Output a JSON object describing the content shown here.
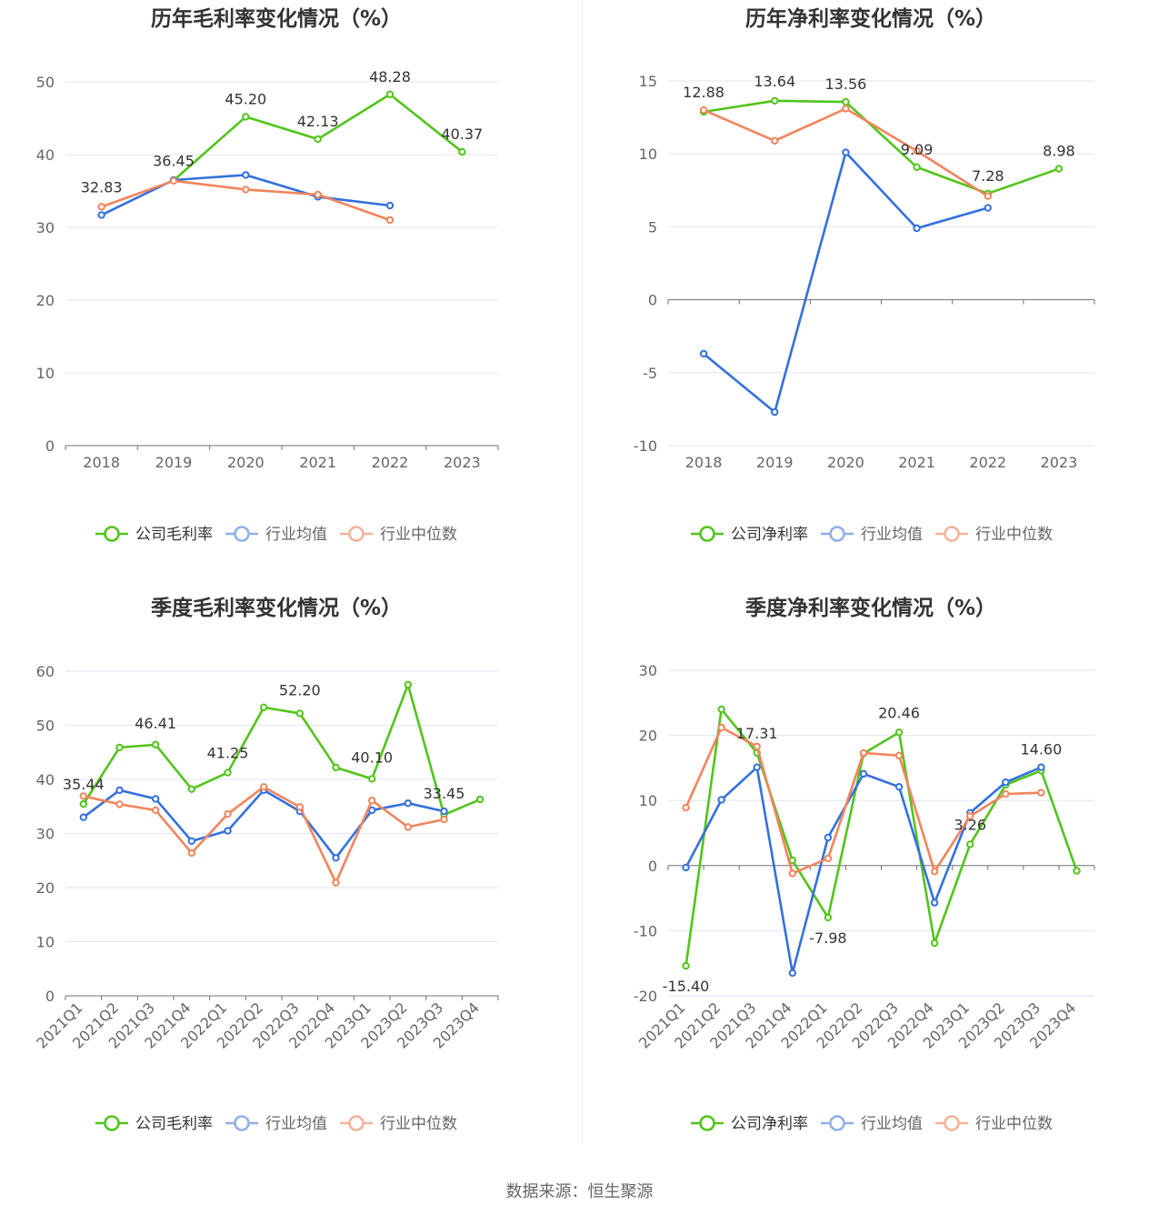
{
  "chart_data": [
    {
      "type": "line",
      "title": "历年毛利率变化情况（%）",
      "categories": [
        "2018",
        "2019",
        "2020",
        "2021",
        "2022",
        "2023"
      ],
      "ylim": [
        0,
        50
      ],
      "yticks": [
        0,
        10,
        20,
        30,
        40,
        50
      ],
      "ytick_labels": [
        "0",
        "10",
        "20",
        "30",
        "40",
        "50"
      ],
      "series": [
        {
          "name": "公司毛利率",
          "color": "#52c41a",
          "values": [
            null,
            36.45,
            45.2,
            42.13,
            48.28,
            40.37
          ]
        },
        {
          "name": "行业均值",
          "color": "#3370de",
          "values": [
            31.7,
            36.5,
            37.2,
            34.2,
            33.0,
            null
          ]
        },
        {
          "name": "行业中位数",
          "color": "#f2845c",
          "values": [
            32.83,
            36.4,
            35.2,
            34.5,
            31.0,
            null
          ]
        }
      ],
      "data_labels": [
        "32.83",
        "36.45",
        "45.20",
        "42.13",
        "48.28",
        "40.37"
      ],
      "legend_position": "bottom"
    },
    {
      "type": "line",
      "title": "历年净利率变化情况（%）",
      "categories": [
        "2018",
        "2019",
        "2020",
        "2021",
        "2022",
        "2023"
      ],
      "ylim": [
        -10,
        15
      ],
      "yticks": [
        -10,
        -5,
        0,
        5,
        10,
        15
      ],
      "ytick_labels": [
        "-10",
        "-5",
        "0",
        "5",
        "10",
        "15"
      ],
      "series": [
        {
          "name": "公司净利率",
          "color": "#52c41a",
          "values": [
            12.88,
            13.64,
            13.56,
            9.09,
            7.28,
            8.98
          ]
        },
        {
          "name": "行业均值",
          "color": "#3370de",
          "values": [
            -3.7,
            -7.7,
            10.1,
            4.9,
            6.3,
            null
          ]
        },
        {
          "name": "行业中位数",
          "color": "#f2845c",
          "values": [
            13.0,
            10.9,
            13.1,
            10.2,
            7.1,
            null
          ]
        }
      ],
      "data_labels": [
        "12.88",
        "13.64",
        "13.56",
        "9.09",
        "7.28",
        "8.98"
      ],
      "legend_position": "bottom"
    },
    {
      "type": "line",
      "title": "季度毛利率变化情况（%）",
      "categories": [
        "2021Q1",
        "2021Q2",
        "2021Q3",
        "2021Q4",
        "2022Q1",
        "2022Q2",
        "2022Q3",
        "2022Q4",
        "2023Q1",
        "2023Q2",
        "2023Q3",
        "2023Q4"
      ],
      "ylim": [
        0,
        60
      ],
      "yticks": [
        0,
        10,
        20,
        30,
        40,
        50,
        60
      ],
      "ytick_labels": [
        "0",
        "10",
        "20",
        "30",
        "40",
        "50",
        "60"
      ],
      "series": [
        {
          "name": "公司毛利率",
          "color": "#52c41a",
          "values": [
            35.44,
            45.9,
            46.41,
            38.2,
            41.25,
            53.3,
            52.2,
            42.2,
            40.1,
            57.5,
            33.45,
            36.3
          ]
        },
        {
          "name": "行业均值",
          "color": "#3370de",
          "values": [
            33.0,
            38.0,
            36.4,
            28.6,
            30.5,
            38.0,
            34.1,
            25.5,
            34.3,
            35.6,
            34.1,
            null
          ]
        },
        {
          "name": "行业中位数",
          "color": "#f2845c",
          "values": [
            36.9,
            35.4,
            34.3,
            26.4,
            33.6,
            38.6,
            34.9,
            20.9,
            36.1,
            31.2,
            32.6,
            null
          ]
        }
      ],
      "data_labels": [
        "35.44",
        "46.41",
        "41.25",
        "52.20",
        "40.10",
        "33.45"
      ],
      "legend_position": "bottom"
    },
    {
      "type": "line",
      "title": "季度净利率变化情况（%）",
      "categories": [
        "2021Q1",
        "2021Q2",
        "2021Q3",
        "2021Q4",
        "2022Q1",
        "2022Q2",
        "2022Q3",
        "2022Q4",
        "2023Q1",
        "2023Q2",
        "2023Q3",
        "2023Q4"
      ],
      "ylim": [
        -20,
        30
      ],
      "yticks": [
        -20,
        -10,
        0,
        10,
        20,
        30
      ],
      "ytick_labels": [
        "-20",
        "-10",
        "0",
        "10",
        "20",
        "30"
      ],
      "series": [
        {
          "name": "公司净利率",
          "color": "#52c41a",
          "values": [
            -15.4,
            24.0,
            17.31,
            0.8,
            -7.98,
            17.2,
            20.46,
            -11.9,
            3.26,
            12.4,
            14.6,
            -0.8
          ]
        },
        {
          "name": "行业均值",
          "color": "#3370de",
          "values": [
            -0.3,
            10.1,
            15.1,
            -16.5,
            4.3,
            14.1,
            12.1,
            -5.7,
            8.1,
            12.8,
            15.1,
            null
          ]
        },
        {
          "name": "行业中位数",
          "color": "#f2845c",
          "values": [
            8.9,
            21.2,
            18.3,
            -1.2,
            1.1,
            17.3,
            16.9,
            -0.9,
            7.6,
            11.0,
            11.2,
            null
          ]
        }
      ],
      "data_labels": [
        "-15.40",
        "17.31",
        "-7.98",
        "20.46",
        "3.26",
        "14.60"
      ],
      "legend_position": "bottom"
    }
  ],
  "footer": {
    "source": "数据来源：恒生聚源"
  }
}
